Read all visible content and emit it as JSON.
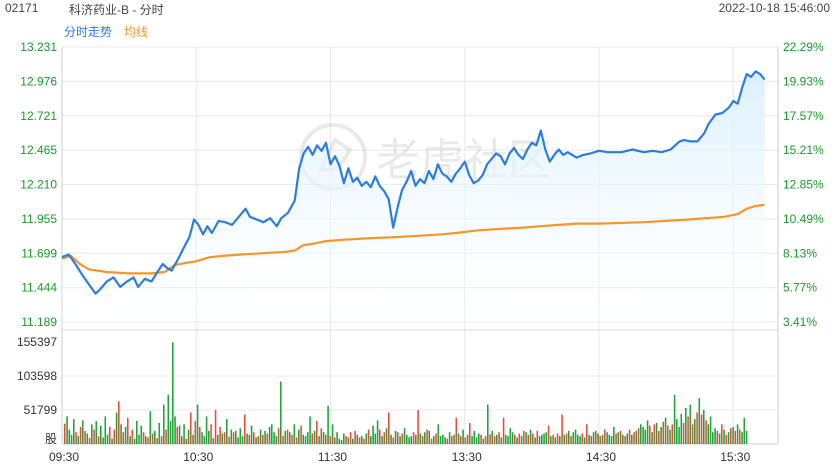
{
  "header": {
    "code": "02171",
    "title": "科济药业-B - 分时",
    "datetime": "2022-10-18 15:46:00"
  },
  "legend": {
    "price_label": "分时走势",
    "avg_label": "均线"
  },
  "colors": {
    "price": "#2b7de1",
    "avg": "#f5962a",
    "area_top": "#d8efff",
    "up": "#e84b3c",
    "down": "#20a33a",
    "grid": "#e8e8e8",
    "pct_text": "#1a9a2a"
  },
  "watermark": {
    "text": "老虎社区"
  },
  "chart_data": [
    {
      "type": "line",
      "title": "",
      "ylim": [
        11.189,
        13.231
      ],
      "left_ticks": [
        "13.231",
        "12.976",
        "12.721",
        "12.465",
        "12.210",
        "11.955",
        "11.699",
        "11.444",
        "11.189"
      ],
      "right_ticks": [
        "22.29%",
        "19.93%",
        "17.57%",
        "15.21%",
        "12.85%",
        "10.49%",
        "8.13%",
        "5.77%",
        "3.41%"
      ],
      "x_ticks": [
        "09:30",
        "10:30",
        "11:30",
        "13:30",
        "14:30",
        "15:30"
      ],
      "series": [
        {
          "name": "分时走势",
          "points": [
            [
              0,
              11.67
            ],
            [
              3,
              11.69
            ],
            [
              6,
              11.62
            ],
            [
              9,
              11.54
            ],
            [
              12,
              11.47
            ],
            [
              15,
              11.4
            ],
            [
              17,
              11.43
            ],
            [
              20,
              11.49
            ],
            [
              23,
              11.52
            ],
            [
              26,
              11.45
            ],
            [
              29,
              11.49
            ],
            [
              32,
              11.52
            ],
            [
              34,
              11.45
            ],
            [
              37,
              11.51
            ],
            [
              40,
              11.49
            ],
            [
              43,
              11.57
            ],
            [
              45,
              11.62
            ],
            [
              47,
              11.59
            ],
            [
              49,
              11.57
            ],
            [
              52,
              11.66
            ],
            [
              55,
              11.76
            ],
            [
              57,
              11.82
            ],
            [
              59,
              11.95
            ],
            [
              61,
              11.91
            ],
            [
              63,
              11.84
            ],
            [
              65,
              11.9
            ],
            [
              67,
              11.85
            ],
            [
              70,
              11.94
            ],
            [
              73,
              11.93
            ],
            [
              76,
              11.91
            ],
            [
              79,
              11.97
            ],
            [
              82,
              12.03
            ],
            [
              84,
              11.97
            ],
            [
              87,
              11.95
            ],
            [
              90,
              11.93
            ],
            [
              93,
              11.96
            ],
            [
              96,
              11.9
            ],
            [
              98,
              11.96
            ],
            [
              101,
              12.0
            ],
            [
              104,
              12.09
            ],
            [
              106,
              12.33
            ],
            [
              108,
              12.44
            ],
            [
              110,
              12.49
            ],
            [
              112,
              12.43
            ],
            [
              114,
              12.5
            ],
            [
              116,
              12.46
            ],
            [
              118,
              12.52
            ],
            [
              120,
              12.36
            ],
            [
              122,
              12.42
            ],
            [
              124,
              12.35
            ],
            [
              126,
              12.22
            ],
            [
              128,
              12.33
            ],
            [
              130,
              12.23
            ],
            [
              132,
              12.26
            ],
            [
              134,
              12.2
            ],
            [
              136,
              12.23
            ],
            [
              138,
              12.19
            ],
            [
              140,
              12.27
            ],
            [
              142,
              12.2
            ],
            [
              144,
              12.16
            ],
            [
              146,
              12.1
            ],
            [
              148,
              11.89
            ],
            [
              150,
              12.04
            ],
            [
              152,
              12.17
            ],
            [
              154,
              12.23
            ],
            [
              156,
              12.31
            ],
            [
              158,
              12.2
            ],
            [
              160,
              12.25
            ],
            [
              162,
              12.22
            ],
            [
              164,
              12.31
            ],
            [
              166,
              12.25
            ],
            [
              168,
              12.36
            ],
            [
              170,
              12.29
            ],
            [
              172,
              12.27
            ],
            [
              174,
              12.23
            ],
            [
              176,
              12.29
            ],
            [
              178,
              12.33
            ],
            [
              180,
              12.38
            ],
            [
              182,
              12.28
            ],
            [
              184,
              12.22
            ],
            [
              186,
              12.24
            ],
            [
              188,
              12.28
            ],
            [
              190,
              12.36
            ],
            [
              192,
              12.4
            ],
            [
              194,
              12.44
            ],
            [
              196,
              12.42
            ],
            [
              198,
              12.36
            ],
            [
              200,
              12.44
            ],
            [
              202,
              12.48
            ],
            [
              204,
              12.43
            ],
            [
              206,
              12.4
            ],
            [
              208,
              12.47
            ],
            [
              210,
              12.52
            ],
            [
              212,
              12.5
            ],
            [
              214,
              12.61
            ],
            [
              216,
              12.47
            ],
            [
              218,
              12.38
            ],
            [
              220,
              12.43
            ],
            [
              222,
              12.47
            ],
            [
              224,
              12.43
            ],
            [
              226,
              12.45
            ],
            [
              228,
              12.43
            ],
            [
              230,
              12.41
            ],
            [
              233,
              12.43
            ],
            [
              236,
              12.44
            ],
            [
              240,
              12.46
            ],
            [
              244,
              12.45
            ],
            [
              250,
              12.45
            ],
            [
              255,
              12.47
            ],
            [
              260,
              12.45
            ],
            [
              264,
              12.46
            ],
            [
              268,
              12.45
            ],
            [
              272,
              12.47
            ],
            [
              276,
              12.53
            ],
            [
              278,
              12.54
            ],
            [
              281,
              12.53
            ],
            [
              284,
              12.53
            ],
            [
              287,
              12.59
            ],
            [
              289,
              12.66
            ],
            [
              292,
              12.73
            ],
            [
              295,
              12.74
            ],
            [
              298,
              12.78
            ],
            [
              300,
              12.83
            ],
            [
              302,
              12.81
            ],
            [
              304,
              12.93
            ],
            [
              306,
              13.03
            ],
            [
              308,
              13.01
            ],
            [
              310,
              13.05
            ],
            [
              312,
              13.03
            ],
            [
              314,
              12.99
            ]
          ]
        },
        {
          "name": "均线",
          "points": [
            [
              0,
              11.66
            ],
            [
              4,
              11.68
            ],
            [
              8,
              11.62
            ],
            [
              12,
              11.58
            ],
            [
              20,
              11.56
            ],
            [
              30,
              11.55
            ],
            [
              40,
              11.55
            ],
            [
              46,
              11.56
            ],
            [
              50,
              11.61
            ],
            [
              56,
              11.63
            ],
            [
              60,
              11.64
            ],
            [
              66,
              11.67
            ],
            [
              72,
              11.68
            ],
            [
              80,
              11.69
            ],
            [
              90,
              11.7
            ],
            [
              100,
              11.71
            ],
            [
              104,
              11.72
            ],
            [
              108,
              11.76
            ],
            [
              112,
              11.77
            ],
            [
              118,
              11.79
            ],
            [
              126,
              11.8
            ],
            [
              136,
              11.81
            ],
            [
              150,
              11.82
            ],
            [
              160,
              11.83
            ],
            [
              170,
              11.84
            ],
            [
              176,
              11.85
            ],
            [
              186,
              11.87
            ],
            [
              196,
              11.88
            ],
            [
              206,
              11.89
            ],
            [
              214,
              11.9
            ],
            [
              222,
              11.91
            ],
            [
              230,
              11.92
            ],
            [
              240,
              11.92
            ],
            [
              260,
              11.93
            ],
            [
              270,
              11.94
            ],
            [
              280,
              11.95
            ],
            [
              296,
              11.97
            ],
            [
              302,
              11.99
            ],
            [
              306,
              12.03
            ],
            [
              310,
              12.05
            ],
            [
              314,
              12.06
            ]
          ]
        }
      ]
    },
    {
      "type": "bar",
      "title": "",
      "ylim": [
        0,
        155397
      ],
      "y_ticks": [
        "155397",
        "103598",
        "51799",
        "股"
      ],
      "volumes": [
        31000,
        42000,
        22000,
        14000,
        38000,
        18000,
        12000,
        26000,
        36000,
        20000,
        16000,
        9000,
        30000,
        22000,
        35000,
        12000,
        28000,
        10000,
        42000,
        14000,
        26000,
        8000,
        22000,
        48000,
        65000,
        30000,
        18000,
        26000,
        40000,
        12000,
        22000,
        8000,
        35000,
        14000,
        28000,
        18000,
        12000,
        10000,
        50000,
        16000,
        20000,
        9000,
        32000,
        12000,
        60000,
        22000,
        75000,
        35000,
        155000,
        42000,
        26000,
        28000,
        12000,
        30000,
        8000,
        22000,
        48000,
        14000,
        35000,
        60000,
        26000,
        18000,
        12000,
        42000,
        20000,
        30000,
        9000,
        52000,
        14000,
        26000,
        16000,
        18000,
        38000,
        11000,
        22000,
        18000,
        20000,
        10000,
        24000,
        12000,
        45000,
        16000,
        14000,
        28000,
        18000,
        10000,
        12000,
        22000,
        14000,
        20000,
        16000,
        26000,
        30000,
        18000,
        12000,
        24000,
        95000,
        12000,
        20000,
        22000,
        18000,
        14000,
        30000,
        10000,
        22000,
        28000,
        14000,
        12000,
        18000,
        42000,
        16000,
        20000,
        35000,
        12000,
        24000,
        18000,
        14000,
        58000,
        12000,
        30000,
        10000,
        18000,
        8000,
        6000,
        16000,
        12000,
        10000,
        18000,
        8000,
        20000,
        14000,
        10000,
        12000,
        8000,
        16000,
        22000,
        12000,
        28000,
        16000,
        36000,
        22000,
        12000,
        18000,
        24000,
        48000,
        14000,
        10000,
        20000,
        18000,
        12000,
        16000,
        24000,
        14000,
        10000,
        12000,
        18000,
        14000,
        52000,
        16000,
        12000,
        18000,
        22000,
        20000,
        8000,
        12000,
        16000,
        30000,
        12000,
        14000,
        10000,
        8000,
        18000,
        12000,
        14000,
        40000,
        16000,
        12000,
        22000,
        10000,
        14000,
        32000,
        12000,
        20000,
        10000,
        16000,
        14000,
        8000,
        12000,
        60000,
        15000,
        20000,
        12000,
        14000,
        18000,
        10000,
        40000,
        14000,
        12000,
        24000,
        18000,
        14000,
        10000,
        16000,
        12000,
        20000,
        18000,
        14000,
        22000,
        16000,
        10000,
        20000,
        12000,
        14000,
        16000,
        18000,
        28000,
        12000,
        14000,
        10000,
        16000,
        12000,
        45000,
        14000,
        16000,
        20000,
        12000,
        18000,
        22000,
        14000,
        12000,
        16000,
        10000,
        30000,
        14000,
        12000,
        18000,
        20000,
        16000,
        12000,
        14000,
        22000,
        18000,
        14000,
        12000,
        26000,
        16000,
        18000,
        20000,
        14000,
        12000,
        16000,
        22000,
        14000,
        18000,
        20000,
        24000,
        30000,
        26000,
        22000,
        36000,
        28000,
        18000,
        30000,
        32000,
        20000,
        26000,
        34000,
        40000,
        28000,
        22000,
        30000,
        75000,
        38000,
        26000,
        46000,
        32000,
        55000,
        42000,
        60000,
        30000,
        38000,
        48000,
        70000,
        45000,
        52000,
        36000,
        30000,
        42000,
        18000,
        24000,
        20000,
        16000,
        30000,
        22000,
        14000,
        18000,
        24000,
        26000,
        20000,
        30000,
        22000,
        18000,
        40000,
        20000
      ]
    }
  ]
}
